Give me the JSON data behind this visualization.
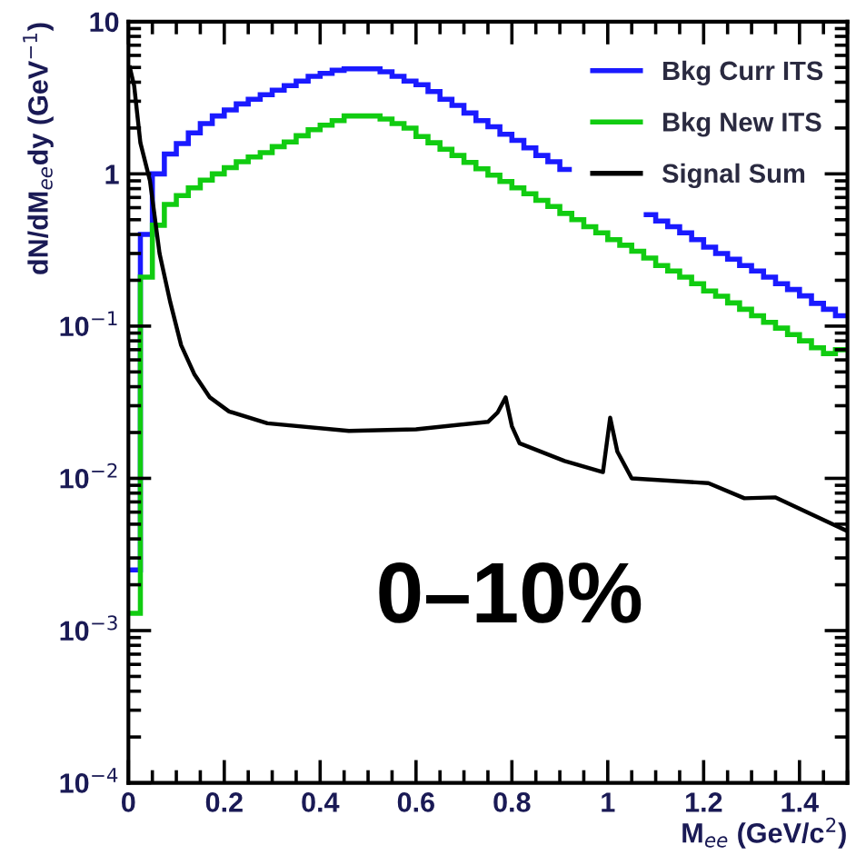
{
  "chart_data": {
    "type": "histogram",
    "xlabel": "M$_{ee}$ (GeV/c$^{2}$)",
    "ylabel": "dN/dM$_{ee}$dy (GeV$^{−1}$)",
    "log": "y",
    "xlim": [
      0,
      1.5
    ],
    "ylim": [
      0.0001,
      10
    ],
    "xticks": [
      0,
      0.2,
      0.4,
      0.6,
      0.8,
      1,
      1.2,
      1.4
    ],
    "yticks": [
      {
        "value": 0.0001,
        "label": "10$^{−4}$"
      },
      {
        "value": 0.001,
        "label": "10$^{−3}$"
      },
      {
        "value": 0.01,
        "label": "10$^{−2}$"
      },
      {
        "value": 0.1,
        "label": "10$^{−1}$"
      },
      1,
      10
    ],
    "bins": [
      0,
      0.025,
      0.05,
      0.075,
      0.1,
      0.125,
      0.15,
      0.175,
      0.2,
      0.225,
      0.25,
      0.275,
      0.3,
      0.325,
      0.35,
      0.375,
      0.4,
      0.425,
      0.45,
      0.475,
      0.5,
      0.525,
      0.55,
      0.575,
      0.6,
      0.625,
      0.65,
      0.675,
      0.7,
      0.725,
      0.75,
      0.775,
      0.8,
      0.825,
      0.85,
      0.875,
      0.9,
      0.925,
      0.95,
      0.975,
      1,
      1.025,
      1.05,
      1.075,
      1.1,
      1.125,
      1.15,
      1.175,
      1.2,
      1.225,
      1.25,
      1.275,
      1.3,
      1.325,
      1.35,
      1.375,
      1.4,
      1.425,
      1.45,
      1.475,
      1.5
    ],
    "legend": "top right",
    "grid": false,
    "series": [
      {
        "name": "Bkg Curr ITS",
        "color": "#1a1aff",
        "bins": [
          0,
          0.025,
          0.05,
          0.075,
          0.1,
          0.125,
          0.15,
          0.175,
          0.2,
          0.225,
          0.25,
          0.275,
          0.3,
          0.325,
          0.35,
          0.375,
          0.4,
          0.425,
          0.45,
          0.475,
          0.5,
          0.525,
          0.55,
          0.575,
          0.6,
          0.625,
          0.65,
          0.675,
          0.7,
          0.725,
          0.75,
          0.775,
          0.8,
          0.825,
          0.85,
          0.875,
          0.9,
          0.925
        ],
        "values": [
          0.0025,
          0.4,
          1.0,
          1.35,
          1.58,
          1.86,
          2.14,
          2.4,
          2.63,
          2.88,
          3.09,
          3.31,
          3.55,
          3.8,
          4.07,
          4.37,
          4.57,
          4.79,
          4.9,
          4.9,
          4.9,
          4.68,
          4.37,
          4.07,
          3.85,
          3.47,
          3.09,
          2.82,
          2.51,
          2.24,
          2.04,
          1.82,
          1.66,
          1.48,
          1.32,
          1.2,
          1.07
        ]
      },
      {
        "color": "#1a1aff",
        "bins": [
          1.075,
          1.1,
          1.125,
          1.15,
          1.175,
          1.2,
          1.225,
          1.25,
          1.275,
          1.3,
          1.325,
          1.35,
          1.375,
          1.4,
          1.425,
          1.45,
          1.475,
          1.5
        ],
        "values": [
          0.54,
          0.49,
          0.45,
          0.41,
          0.37,
          0.33,
          0.3,
          0.275,
          0.25,
          0.23,
          0.21,
          0.19,
          0.174,
          0.158,
          0.141,
          0.129,
          0.117
        ]
      },
      {
        "name": "Bkg New ITS",
        "color": "#11cc11",
        "values": [
          0.0013,
          0.21,
          0.46,
          0.63,
          0.72,
          0.81,
          0.91,
          1.0,
          1.1,
          1.2,
          1.29,
          1.38,
          1.51,
          1.62,
          1.78,
          1.95,
          2.09,
          2.24,
          2.4,
          2.4,
          2.4,
          2.29,
          2.14,
          2.0,
          1.76,
          1.6,
          1.45,
          1.32,
          1.19,
          1.08,
          0.98,
          0.89,
          0.81,
          0.74,
          0.67,
          0.61,
          0.55,
          0.5,
          0.45,
          0.41,
          0.37,
          0.34,
          0.31,
          0.28,
          0.25,
          0.23,
          0.21,
          0.19,
          0.17,
          0.157,
          0.142,
          0.129,
          0.117,
          0.106,
          0.097,
          0.088,
          0.08,
          0.072,
          0.066,
          0.07
        ]
      },
      {
        "name": "Signal Sum",
        "color": "#000000",
        "type": "line",
        "x": [
          0.003,
          0.012,
          0.025,
          0.045,
          0.065,
          0.087,
          0.11,
          0.138,
          0.17,
          0.21,
          0.29,
          0.46,
          0.6,
          0.75,
          0.77,
          0.787,
          0.8,
          0.816,
          0.91,
          0.99,
          1.005,
          1.02,
          1.05,
          1.21,
          1.285,
          1.35,
          1.5
        ],
        "values": [
          5,
          3.8,
          1.6,
          0.9,
          0.3,
          0.145,
          0.075,
          0.048,
          0.034,
          0.0275,
          0.023,
          0.0205,
          0.021,
          0.0235,
          0.027,
          0.034,
          0.022,
          0.017,
          0.013,
          0.011,
          0.025,
          0.015,
          0.01,
          0.0093,
          0.0074,
          0.0075,
          0.0045
        ]
      }
    ],
    "annotations": [
      "0–10%"
    ]
  }
}
